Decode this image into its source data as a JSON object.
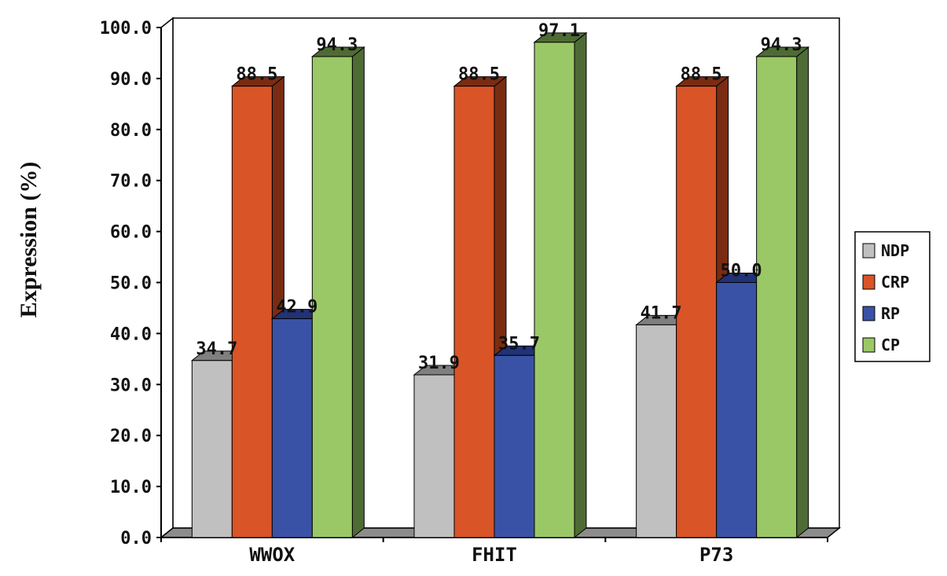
{
  "chart_data": {
    "type": "bar",
    "style": "3d-clustered-column",
    "categories": [
      "WWOX",
      "FHIT",
      "P73"
    ],
    "series": [
      {
        "name": "NDP",
        "values": [
          34.7,
          31.9,
          41.7
        ],
        "color": "#c0c0c0",
        "side": "#7f7f7f"
      },
      {
        "name": "CRP",
        "values": [
          88.5,
          88.5,
          88.5
        ],
        "color": "#d95427",
        "side": "#7a2c12"
      },
      {
        "name": "RP",
        "values": [
          42.9,
          35.7,
          50.0
        ],
        "color": "#3a52a6",
        "side": "#223277"
      },
      {
        "name": "CP",
        "values": [
          94.3,
          97.1,
          94.3
        ],
        "color": "#9bc866",
        "side": "#4e6b35"
      }
    ],
    "data_labels": [
      [
        "34.7",
        "31.9",
        "41.7"
      ],
      [
        "88.5",
        "88.5",
        "88.5"
      ],
      [
        "42.9",
        "35.7",
        "50.0"
      ],
      [
        "94.3",
        "97.1",
        "94.3"
      ]
    ],
    "y_ticks": [
      "0.0",
      "10.0",
      "20.0",
      "30.0",
      "40.0",
      "50.0",
      "60.0",
      "70.0",
      "80.0",
      "90.0",
      "100.0"
    ],
    "ylim": [
      0,
      100
    ],
    "ylabel": "Expression (%)",
    "xlabel": "",
    "title": "",
    "grid": false,
    "legend_position": "right"
  }
}
